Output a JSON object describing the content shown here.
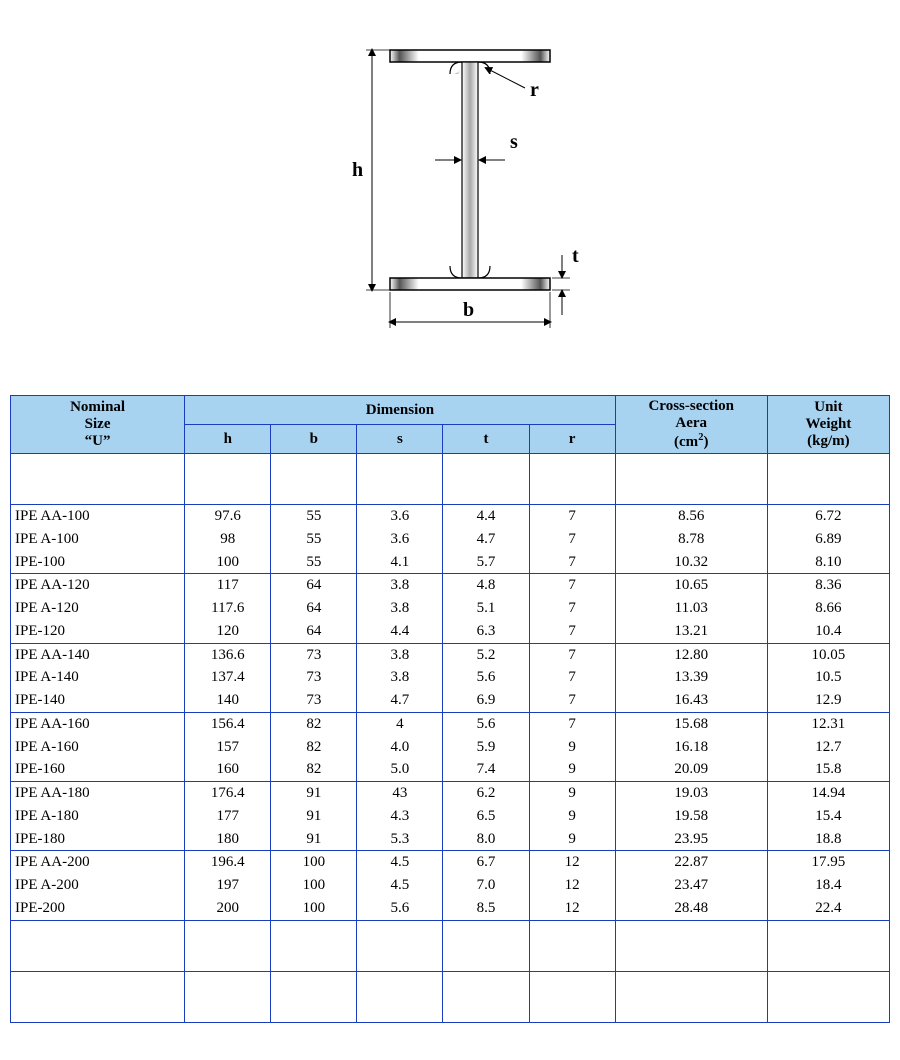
{
  "diagram": {
    "labels": {
      "h": "h",
      "b": "b",
      "s": "s",
      "t": "t",
      "r": "r"
    },
    "colors": {
      "outline": "#000000",
      "fill_light": "#f6f6f6",
      "fill_dark": "#6b6b6b",
      "background": "#ffffff"
    }
  },
  "table": {
    "colors": {
      "header_bg": "#a7d3f0",
      "border": "#1a3dbf",
      "text": "#000000"
    },
    "header": {
      "nominal_line1": "Nominal",
      "nominal_line2": "Size",
      "nominal_line3": "“U”",
      "dimension": "Dimension",
      "h": "h",
      "b": "b",
      "s": "s",
      "t": "t",
      "r": "r",
      "area_line1": "Cross-section",
      "area_line2": "Aera",
      "area_unit_prefix": "(cm",
      "area_unit_exp": "2",
      "area_unit_suffix": ")",
      "weight_line1": "Unit",
      "weight_line2": "Weight",
      "weight_unit": "(kg/m)"
    },
    "groups": [
      [
        {
          "nom": "IPE AA-100",
          "h": "97.6",
          "b": "55",
          "s": "3.6",
          "t": "4.4",
          "r": "7",
          "area": "8.56",
          "wt": "6.72"
        },
        {
          "nom": "IPE A-100",
          "h": "98",
          "b": "55",
          "s": "3.6",
          "t": "4.7",
          "r": "7",
          "area": "8.78",
          "wt": "6.89"
        },
        {
          "nom": "IPE-100",
          "h": "100",
          "b": "55",
          "s": "4.1",
          "t": "5.7",
          "r": "7",
          "area": "10.32",
          "wt": "8.10"
        }
      ],
      [
        {
          "nom": "IPE AA-120",
          "h": "117",
          "b": "64",
          "s": "3.8",
          "t": "4.8",
          "r": "7",
          "area": "10.65",
          "wt": "8.36"
        },
        {
          "nom": "IPE A-120",
          "h": "117.6",
          "b": "64",
          "s": "3.8",
          "t": "5.1",
          "r": "7",
          "area": "11.03",
          "wt": "8.66"
        },
        {
          "nom": "IPE-120",
          "h": "120",
          "b": "64",
          "s": "4.4",
          "t": "6.3",
          "r": "7",
          "area": "13.21",
          "wt": "10.4"
        }
      ],
      [
        {
          "nom": "IPE AA-140",
          "h": "136.6",
          "b": "73",
          "s": "3.8",
          "t": "5.2",
          "r": "7",
          "area": "12.80",
          "wt": "10.05"
        },
        {
          "nom": "IPE A-140",
          "h": "137.4",
          "b": "73",
          "s": "3.8",
          "t": "5.6",
          "r": "7",
          "area": "13.39",
          "wt": "10.5"
        },
        {
          "nom": "IPE-140",
          "h": "140",
          "b": "73",
          "s": "4.7",
          "t": "6.9",
          "r": "7",
          "area": "16.43",
          "wt": "12.9"
        }
      ],
      [
        {
          "nom": "IPE AA-160",
          "h": "156.4",
          "b": "82",
          "s": "4",
          "t": "5.6",
          "r": "7",
          "area": "15.68",
          "wt": "12.31"
        },
        {
          "nom": "IPE A-160",
          "h": "157",
          "b": "82",
          "s": "4.0",
          "t": "5.9",
          "r": "9",
          "area": "16.18",
          "wt": "12.7"
        },
        {
          "nom": "IPE-160",
          "h": "160",
          "b": "82",
          "s": "5.0",
          "t": "7.4",
          "r": "9",
          "area": "20.09",
          "wt": "15.8"
        }
      ],
      [
        {
          "nom": "IPE AA-180",
          "h": "176.4",
          "b": "91",
          "s": "43",
          "t": "6.2",
          "r": "9",
          "area": "19.03",
          "wt": "14.94"
        },
        {
          "nom": "IPE A-180",
          "h": "177",
          "b": "91",
          "s": "4.3",
          "t": "6.5",
          "r": "9",
          "area": "19.58",
          "wt": "15.4"
        },
        {
          "nom": "IPE-180",
          "h": "180",
          "b": "91",
          "s": "5.3",
          "t": "8.0",
          "r": "9",
          "area": "23.95",
          "wt": "18.8"
        }
      ],
      [
        {
          "nom": "IPE AA-200",
          "h": "196.4",
          "b": "100",
          "s": "4.5",
          "t": "6.7",
          "r": "12",
          "area": "22.87",
          "wt": "17.95"
        },
        {
          "nom": "IPE A-200",
          "h": "197",
          "b": "100",
          "s": "4.5",
          "t": "7.0",
          "r": "12",
          "area": "23.47",
          "wt": "18.4"
        },
        {
          "nom": "IPE-200",
          "h": "200",
          "b": "100",
          "s": "5.6",
          "t": "8.5",
          "r": "12",
          "area": "28.48",
          "wt": "22.4"
        }
      ]
    ]
  }
}
